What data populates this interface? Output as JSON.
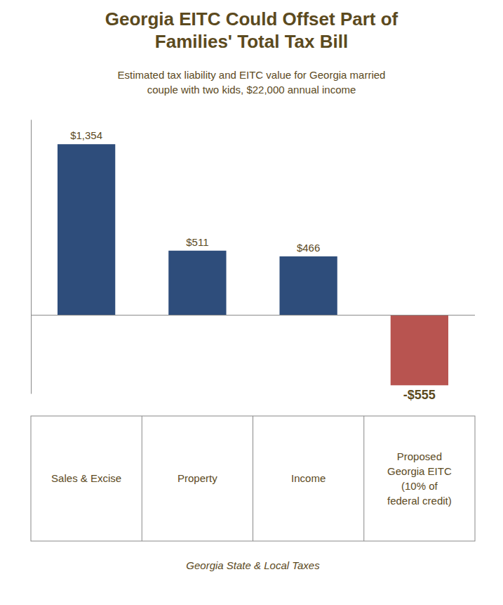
{
  "chart_data": {
    "type": "bar",
    "title": "Georgia EITC Could Offset Part of\nFamilies' Total Tax Bill",
    "subtitle": "Estimated tax liability and EITC value for Georgia married\ncouple with two kids, $22,000 annual income",
    "xlabel": "Georgia State & Local Taxes",
    "categories": [
      "Sales & Excise",
      "Property",
      "Income",
      "Proposed\nGeorgia EITC\n(10% of\nfederal credit)"
    ],
    "values": [
      1354,
      511,
      466,
      -555
    ],
    "value_labels": [
      "$1,354",
      "$511",
      "$466",
      "-$555"
    ],
    "colors": [
      "#2E4D7B",
      "#2E4D7B",
      "#2E4D7B",
      "#B85450"
    ],
    "ylim": [
      -620,
      1550
    ],
    "data_labels": true,
    "tick_labels": "x"
  }
}
